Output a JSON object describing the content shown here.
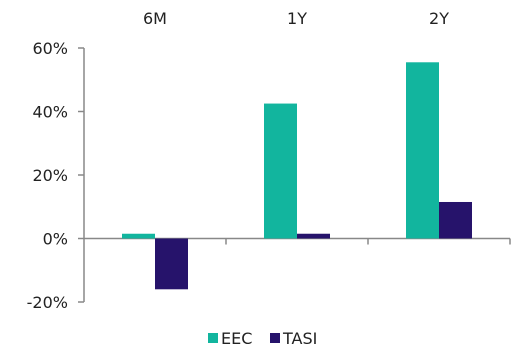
{
  "chart_data": {
    "type": "bar",
    "categories": [
      "6M",
      "1Y",
      "2Y"
    ],
    "series": [
      {
        "name": "EEC",
        "values": [
          1.5,
          42.5,
          55.5
        ],
        "color": "#12B59E"
      },
      {
        "name": "TASI",
        "values": [
          -16,
          1.5,
          11.5
        ],
        "color": "#26136B"
      }
    ],
    "xlabel": "",
    "ylabel": "",
    "ylim": [
      -20,
      60
    ],
    "yticks": [
      "-20%",
      "0%",
      "20%",
      "40%",
      "60%"
    ],
    "ytick_values": [
      -20,
      0,
      20,
      40,
      60
    ],
    "xaxis_position": "top",
    "legend_position": "bottom-center",
    "grid": false
  }
}
